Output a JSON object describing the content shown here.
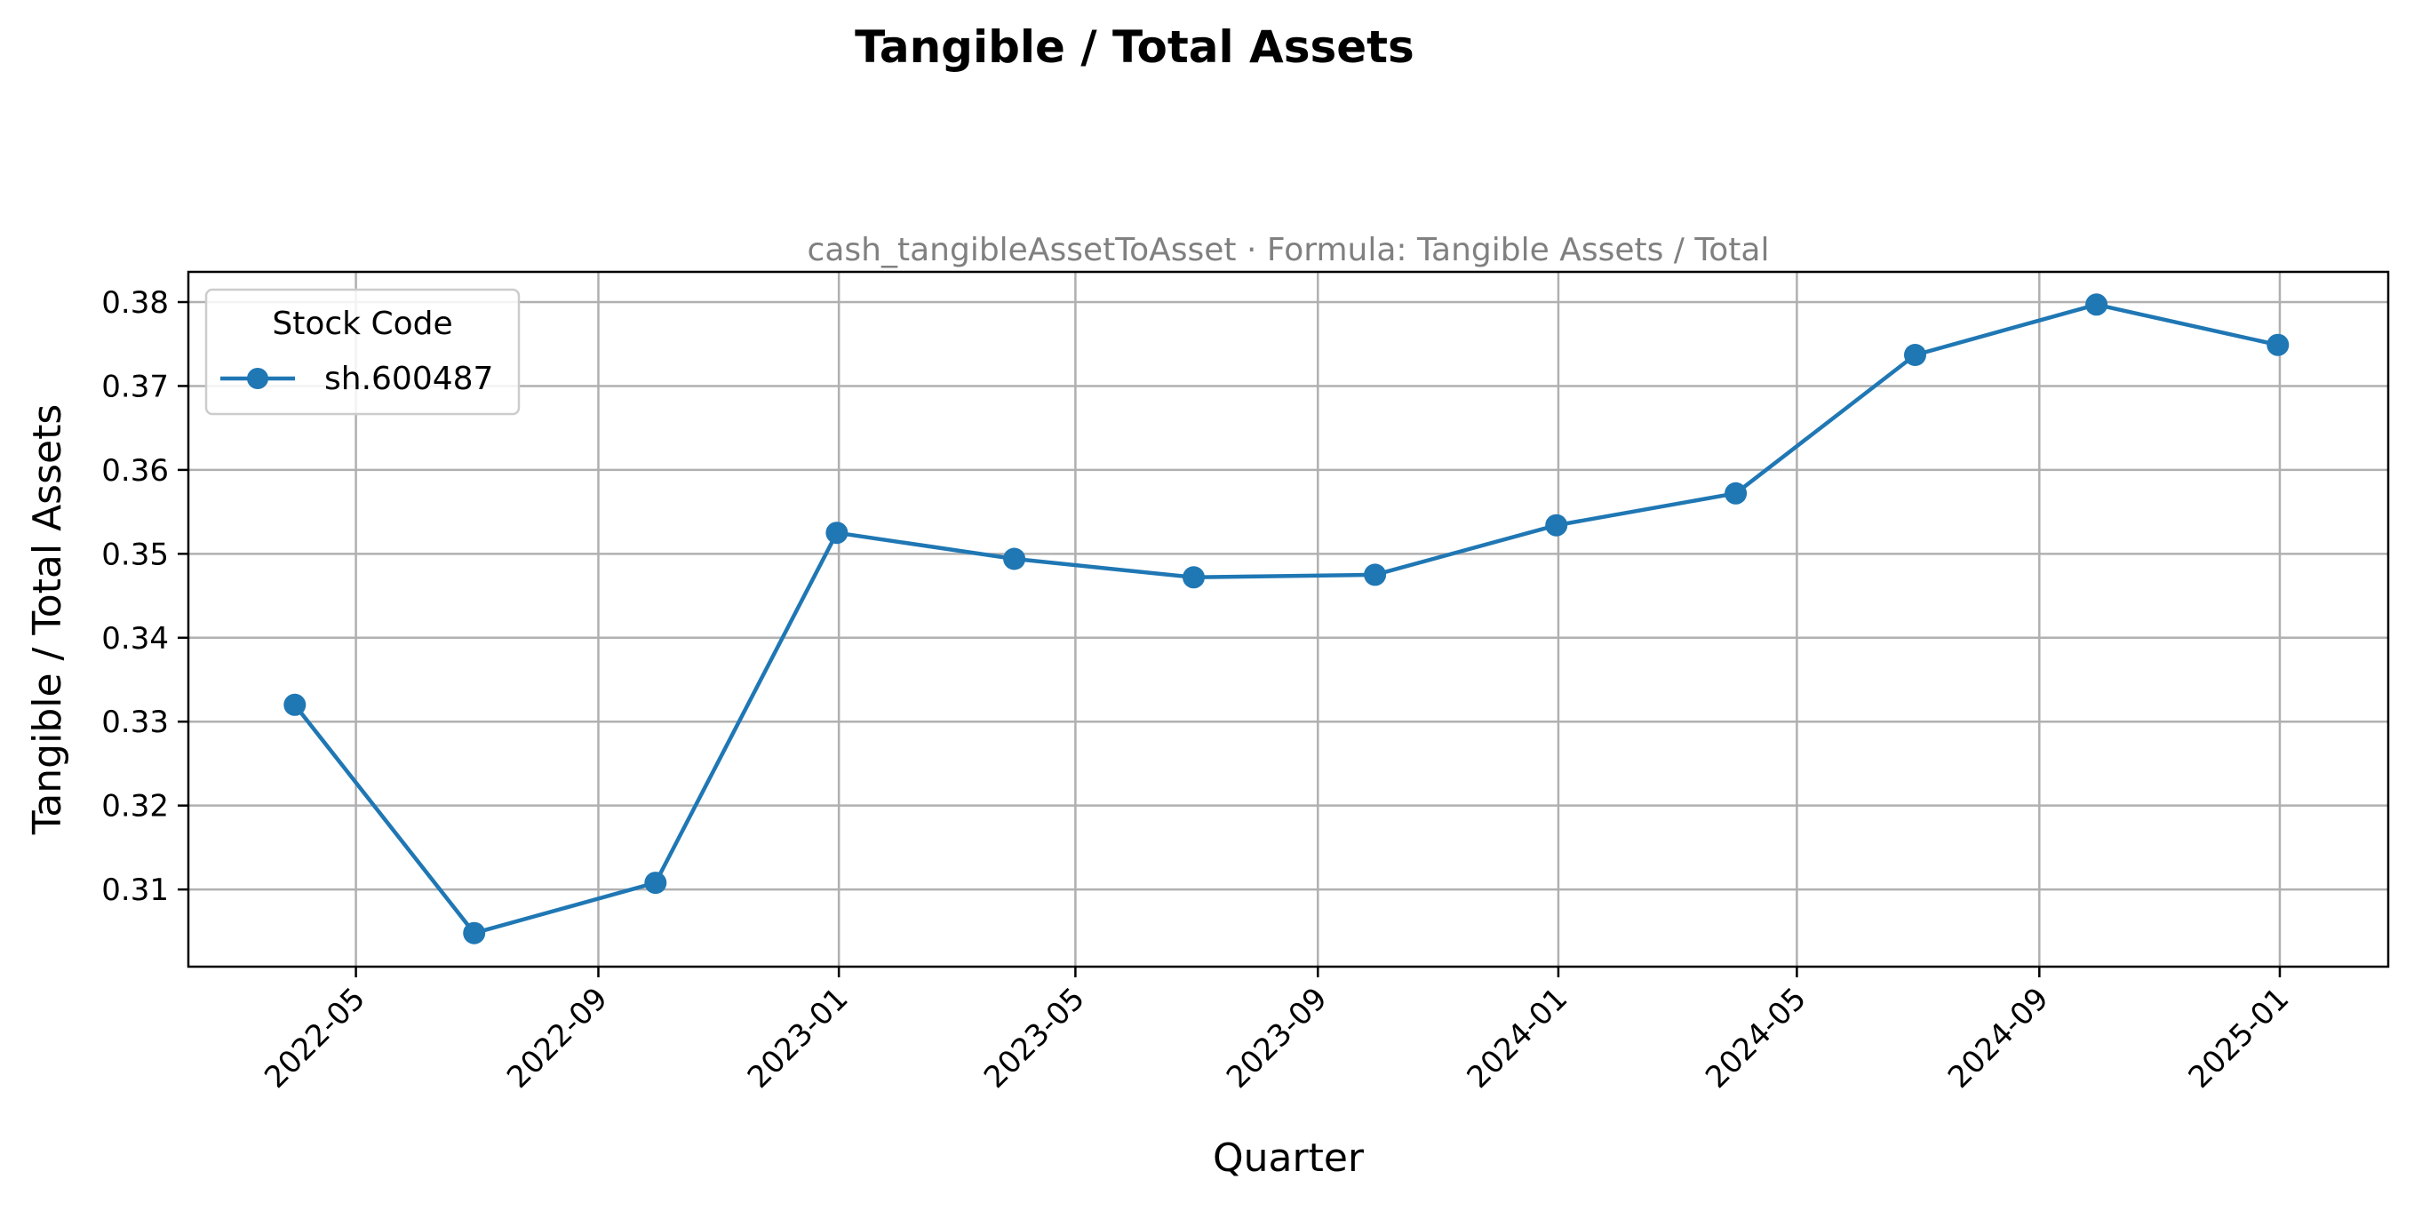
{
  "chart_data": {
    "type": "line",
    "title": "Tangible / Total Assets",
    "subtitle": "cash_tangibleAssetToAsset · Formula: Tangible Assets / Total",
    "xlabel": "Quarter",
    "ylabel": "Tangible / Total Assets",
    "x_ticks": [
      "2022-05",
      "2022-09",
      "2023-01",
      "2023-05",
      "2023-09",
      "2024-01",
      "2024-05",
      "2024-09",
      "2025-01"
    ],
    "y_ticks": [
      "0.31",
      "0.32",
      "0.33",
      "0.34",
      "0.35",
      "0.36",
      "0.37",
      "0.38"
    ],
    "ylim": [
      0.3008,
      0.3836
    ],
    "xlim": [
      "2022-02-05",
      "2025-02-25"
    ],
    "grid": true,
    "legend": {
      "title": "Stock Code",
      "placement": "upper-left"
    },
    "series": [
      {
        "name": "sh.600487",
        "color": "#1f77b4",
        "x": [
          "2022-03-31",
          "2022-06-30",
          "2022-09-30",
          "2022-12-31",
          "2023-03-31",
          "2023-06-30",
          "2023-09-30",
          "2023-12-31",
          "2024-03-31",
          "2024-06-30",
          "2024-09-30",
          "2024-12-31"
        ],
        "values": [
          0.332,
          0.3048,
          0.3108,
          0.3525,
          0.3494,
          0.3472,
          0.3475,
          0.3534,
          0.3572,
          0.3737,
          0.3797,
          0.3749
        ]
      }
    ]
  }
}
